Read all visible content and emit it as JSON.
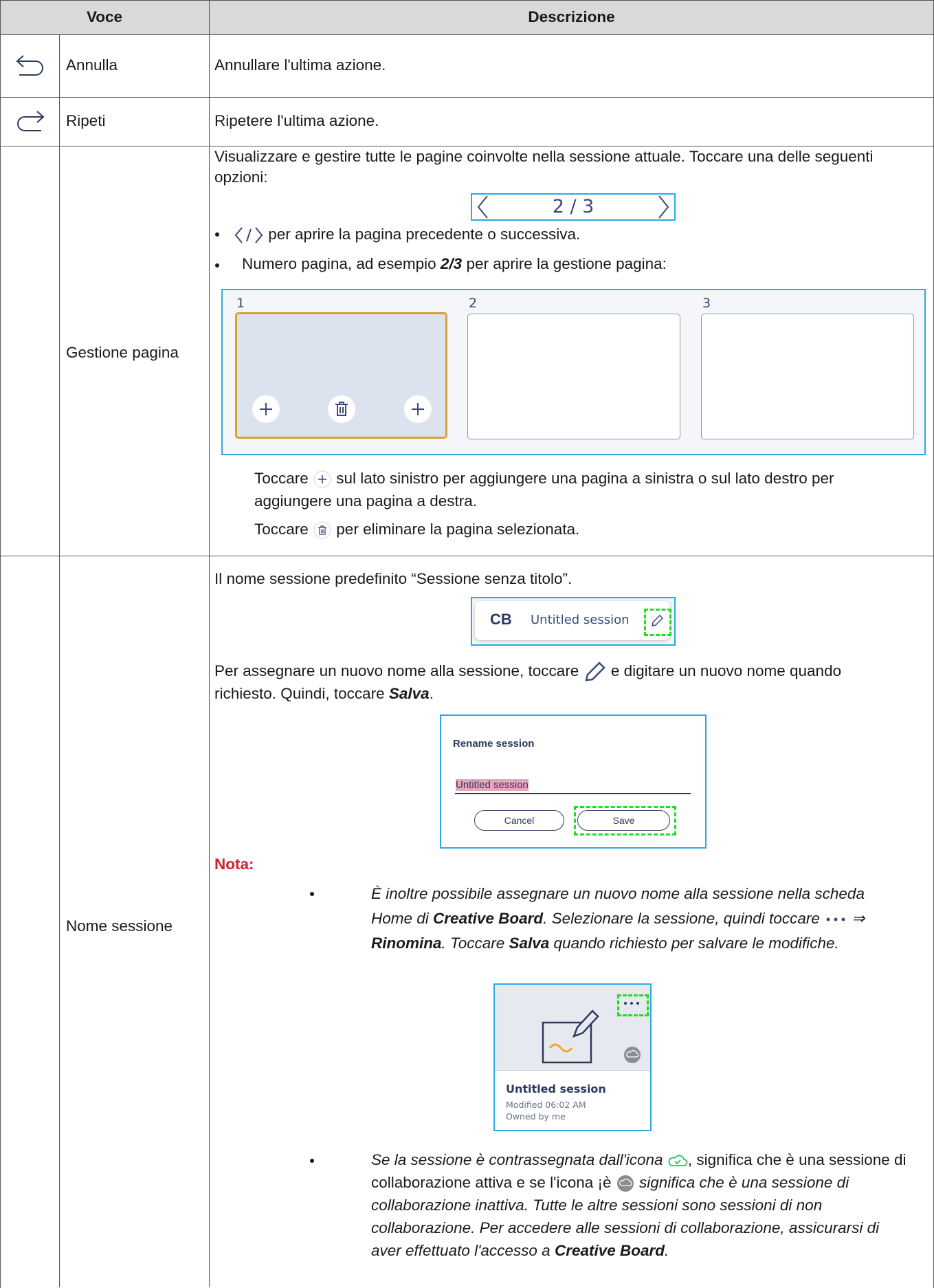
{
  "header": {
    "voce": "Voce",
    "descrizione": "Descrizione"
  },
  "rows": [
    {
      "voce": "Annulla",
      "descrizione": "Annullare l'ultima azione."
    },
    {
      "voce": "Ripeti",
      "descrizione": "Ripetere l'ultima azione."
    },
    {
      "voce": "Gestione pagina",
      "intro": "Visualizzare e gestire tutte le pagine coinvolte nella sessione attuale. Toccare una delle seguenti opzioni:",
      "pager": "2 / 3",
      "bullets": [
        [
          "per aprire la pagina precedente o successiva."
        ],
        [
          "Numero pagina, ad esempio ",
          "2/3",
          " per aprire la gestione pagina:"
        ]
      ],
      "pages": [
        "1",
        "2",
        "3"
      ],
      "add_note": [
        "Toccare ",
        " sul lato sinistro per aggiungere una pagina a sinistra o sul lato destro per aggiungere una pagina a destra."
      ],
      "delete_note": [
        "Toccare ",
        " per eliminare la pagina selezionata."
      ]
    },
    {
      "voce": "Nome sessione",
      "intro": "Il nome sessione predefinito “Sessione senza titolo”.",
      "title_bar": {
        "logo": "CB",
        "name": "Untitled session"
      },
      "rename": [
        "Per assegnare un nuovo nome alla sessione, toccare ",
        "e digitare un nuovo nome quando richiesto. Quindi, toccare ",
        "Salva",
        "."
      ],
      "dialog": {
        "title": "Rename session",
        "input": "Untitled session",
        "cancel": "Cancel",
        "save": "Save"
      },
      "note_label": "Nota:",
      "notes": [
        [
          "È inoltre possibile assegnare un nuovo nome alla sessione nella scheda Home di ",
          "Creative Board",
          ". Selezionare la sessione, quindi toccare ",
          " ⇒ ",
          "Rinomina",
          ". Toccare ",
          "Salva",
          " quando richiesto per salvare le modifiche."
        ],
        [
          "Se la sessione è contrassegnata dall'icona ",
          ", significa che è una sessione di collaborazione attiva e se l'icona ¡è ",
          " significa che è una sessione di collaborazione inattiva. Tutte le altre sessioni sono sessioni di non collaborazione. Per accedere alle sessioni di collaborazione, assicurarsi di aver effettuato l'accesso a ",
          "Creative Board",
          "."
        ]
      ],
      "card": {
        "name": "Untitled session",
        "modified": "Modified 06:02 AM",
        "owner": "Owned by me"
      }
    }
  ]
}
